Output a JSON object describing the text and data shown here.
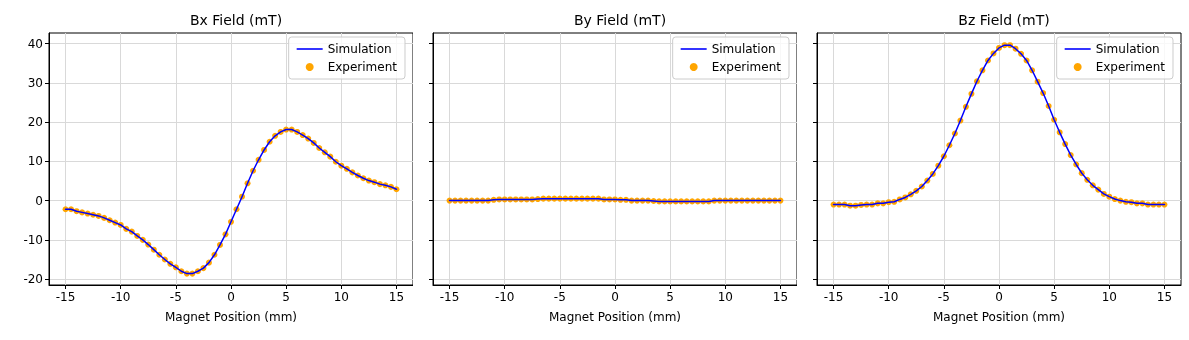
{
  "chart_data": [
    {
      "type": "line",
      "title": "Bx Field (mT)",
      "xlabel": "Magnet Position (mm)",
      "xlim": [
        -16.5,
        16.5
      ],
      "xticks": [
        -15,
        -10,
        -5,
        0,
        5,
        10,
        15
      ],
      "ylim": [
        -21.5,
        42.7
      ],
      "yticks": [
        -20,
        -10,
        0,
        10,
        20,
        30,
        40
      ],
      "grid": true,
      "legend": "top right",
      "x": [
        -15,
        -14.5,
        -14,
        -13.5,
        -13,
        -12.5,
        -12,
        -11.5,
        -11,
        -10.5,
        -10,
        -9.5,
        -9,
        -8.5,
        -8,
        -7.5,
        -7,
        -6.5,
        -6,
        -5.5,
        -5,
        -4.5,
        -4,
        -3.5,
        -3,
        -2.5,
        -2,
        -1.5,
        -1,
        -0.5,
        0,
        0.5,
        1,
        1.5,
        2,
        2.5,
        3,
        3.5,
        4,
        4.5,
        5,
        5.5,
        6,
        6.5,
        7,
        7.5,
        8,
        8.5,
        9,
        9.5,
        10,
        10.5,
        11,
        11.5,
        12,
        12.5,
        13,
        13.5,
        14,
        14.5,
        15
      ],
      "series": [
        {
          "name": "Simulation",
          "color": "#0000ff",
          "line_style": "solid",
          "marker": "none",
          "values": [
            -2.2,
            -2.2,
            -2.7,
            -3.0,
            -3.3,
            -3.6,
            -3.9,
            -4.4,
            -5.0,
            -5.6,
            -6.2,
            -7.2,
            -7.9,
            -9.0,
            -10.0,
            -11.2,
            -12.5,
            -13.8,
            -15.0,
            -16.1,
            -17.0,
            -18.0,
            -18.6,
            -18.6,
            -18.0,
            -17.2,
            -15.8,
            -13.8,
            -11.3,
            -8.6,
            -5.4,
            -2.2,
            1.0,
            4.4,
            7.6,
            10.4,
            12.9,
            15.0,
            16.5,
            17.5,
            18.1,
            18.1,
            17.5,
            16.7,
            15.8,
            14.7,
            13.4,
            12.3,
            11.2,
            9.9,
            8.9,
            8.1,
            7.2,
            6.4,
            5.7,
            5.1,
            4.7,
            4.2,
            3.9,
            3.5,
            2.9
          ]
        },
        {
          "name": "Experiment",
          "type": "scatter",
          "color": "#ffa500",
          "marker": "circle",
          "values": [
            -2.2,
            -2.2,
            -2.7,
            -3.0,
            -3.3,
            -3.6,
            -3.9,
            -4.4,
            -5.0,
            -5.6,
            -6.2,
            -7.2,
            -7.9,
            -9.0,
            -10.0,
            -11.2,
            -12.5,
            -13.8,
            -15.0,
            -16.1,
            -17.0,
            -18.0,
            -18.6,
            -18.6,
            -18.0,
            -17.2,
            -15.8,
            -13.8,
            -11.3,
            -8.6,
            -5.4,
            -2.2,
            1.0,
            4.4,
            7.6,
            10.4,
            12.9,
            15.0,
            16.5,
            17.5,
            18.1,
            18.1,
            17.5,
            16.7,
            15.8,
            14.7,
            13.4,
            12.3,
            11.2,
            9.9,
            8.9,
            8.1,
            7.2,
            6.4,
            5.7,
            5.1,
            4.7,
            4.2,
            3.9,
            3.5,
            2.9
          ]
        }
      ]
    },
    {
      "type": "line",
      "title": "By Field (mT)",
      "xlabel": "Magnet Position (mm)",
      "xlim": [
        -16.5,
        16.5
      ],
      "xticks": [
        -15,
        -10,
        -5,
        0,
        5,
        10,
        15
      ],
      "ylim": [
        -21.5,
        42.7
      ],
      "yticks": [
        -20,
        -10,
        0,
        10,
        20,
        30,
        40
      ],
      "grid": true,
      "legend": "top right",
      "tick_labels": "x",
      "x": [
        -15,
        -14.5,
        -14,
        -13.5,
        -13,
        -12.5,
        -12,
        -11.5,
        -11,
        -10.5,
        -10,
        -9.5,
        -9,
        -8.5,
        -8,
        -7.5,
        -7,
        -6.5,
        -6,
        -5.5,
        -5,
        -4.5,
        -4,
        -3.5,
        -3,
        -2.5,
        -2,
        -1.5,
        -1,
        -0.5,
        0,
        0.5,
        1,
        1.5,
        2,
        2.5,
        3,
        3.5,
        4,
        4.5,
        5,
        5.5,
        6,
        6.5,
        7,
        7.5,
        8,
        8.5,
        9,
        9.5,
        10,
        10.5,
        11,
        11.5,
        12,
        12.5,
        13,
        13.5,
        14,
        14.5,
        15
      ],
      "series": [
        {
          "name": "Simulation",
          "color": "#0000ff",
          "line_style": "solid",
          "marker": "none",
          "values": [
            0,
            0,
            0,
            0,
            0,
            0,
            0,
            0,
            0.2,
            0.3,
            0.3,
            0.3,
            0.3,
            0.3,
            0.3,
            0.3,
            0.4,
            0.5,
            0.5,
            0.5,
            0.5,
            0.5,
            0.5,
            0.5,
            0.5,
            0.5,
            0.5,
            0.5,
            0.3,
            0.3,
            0.3,
            0.2,
            0.2,
            0,
            0,
            0,
            0,
            -0.1,
            -0.2,
            -0.2,
            -0.2,
            -0.2,
            -0.2,
            -0.2,
            -0.2,
            -0.2,
            -0.2,
            -0.2,
            0,
            0,
            0,
            0,
            0,
            0,
            0,
            0,
            0,
            0,
            0,
            0,
            0
          ]
        },
        {
          "name": "Experiment",
          "type": "scatter",
          "color": "#ffa500",
          "marker": "circle",
          "values": [
            0,
            0,
            0,
            0,
            0,
            0,
            0,
            0,
            0.2,
            0.3,
            0.3,
            0.3,
            0.3,
            0.3,
            0.3,
            0.3,
            0.4,
            0.5,
            0.5,
            0.5,
            0.5,
            0.5,
            0.5,
            0.5,
            0.5,
            0.5,
            0.5,
            0.5,
            0.3,
            0.3,
            0.3,
            0.2,
            0.2,
            0,
            0,
            0,
            0,
            -0.1,
            -0.2,
            -0.2,
            -0.2,
            -0.2,
            -0.2,
            -0.2,
            -0.2,
            -0.2,
            -0.2,
            -0.2,
            0,
            0,
            0,
            0,
            0,
            0,
            0,
            0,
            0,
            0,
            0,
            0,
            0
          ]
        }
      ]
    },
    {
      "type": "line",
      "title": "Bz Field (mT)",
      "xlabel": "Magnet Position (mm)",
      "xlim": [
        -16.5,
        16.5
      ],
      "xticks": [
        -15,
        -10,
        -5,
        0,
        5,
        10,
        15
      ],
      "ylim": [
        -21.5,
        42.7
      ],
      "yticks": [
        -20,
        -10,
        0,
        10,
        20,
        30,
        40
      ],
      "grid": true,
      "legend": "top right",
      "tick_labels": "x",
      "x": [
        -15,
        -14.5,
        -14,
        -13.5,
        -13,
        -12.5,
        -12,
        -11.5,
        -11,
        -10.5,
        -10,
        -9.5,
        -9,
        -8.5,
        -8,
        -7.5,
        -7,
        -6.5,
        -6,
        -5.5,
        -5,
        -4.5,
        -4,
        -3.5,
        -3,
        -2.5,
        -2,
        -1.5,
        -1,
        -0.5,
        0,
        0.5,
        1,
        1.5,
        2,
        2.5,
        3,
        3.5,
        4,
        4.5,
        5,
        5.5,
        6,
        6.5,
        7,
        7.5,
        8,
        8.5,
        9,
        9.5,
        10,
        10.5,
        11,
        11.5,
        12,
        12.5,
        13,
        13.5,
        14,
        14.5,
        15
      ],
      "series": [
        {
          "name": "Simulation",
          "color": "#0000ff",
          "line_style": "solid",
          "marker": "none",
          "values": [
            -1.0,
            -1.0,
            -1.0,
            -1.3,
            -1.3,
            -1.1,
            -1.0,
            -1.0,
            -0.7,
            -0.7,
            -0.4,
            -0.3,
            0.3,
            0.8,
            1.6,
            2.5,
            3.6,
            5.1,
            6.8,
            8.9,
            11.3,
            14.1,
            17.1,
            20.4,
            23.9,
            27.2,
            30.4,
            33.2,
            35.7,
            37.5,
            38.9,
            39.6,
            39.6,
            38.7,
            37.4,
            35.7,
            33.2,
            30.3,
            27.4,
            24.1,
            20.6,
            17.4,
            14.4,
            11.6,
            9.2,
            7.0,
            5.3,
            3.9,
            2.8,
            1.7,
            1.0,
            0.4,
            0,
            -0.3,
            -0.4,
            -0.7,
            -0.7,
            -1.0,
            -1.0,
            -1.0,
            -1.0
          ]
        },
        {
          "name": "Experiment",
          "type": "scatter",
          "color": "#ffa500",
          "marker": "circle",
          "values": [
            -1.0,
            -1.0,
            -1.0,
            -1.3,
            -1.3,
            -1.1,
            -1.0,
            -1.0,
            -0.7,
            -0.7,
            -0.4,
            -0.3,
            0.3,
            0.8,
            1.6,
            2.5,
            3.6,
            5.1,
            6.8,
            8.9,
            11.3,
            14.1,
            17.1,
            20.4,
            23.9,
            27.2,
            30.4,
            33.2,
            35.7,
            37.5,
            38.9,
            39.6,
            39.6,
            38.7,
            37.4,
            35.7,
            33.2,
            30.3,
            27.4,
            24.1,
            20.6,
            17.4,
            14.4,
            11.6,
            9.2,
            7.0,
            5.3,
            3.9,
            2.8,
            1.7,
            1.0,
            0.4,
            0,
            -0.3,
            -0.4,
            -0.7,
            -0.7,
            -1.0,
            -1.0,
            -1.0,
            -1.0
          ]
        }
      ]
    }
  ]
}
